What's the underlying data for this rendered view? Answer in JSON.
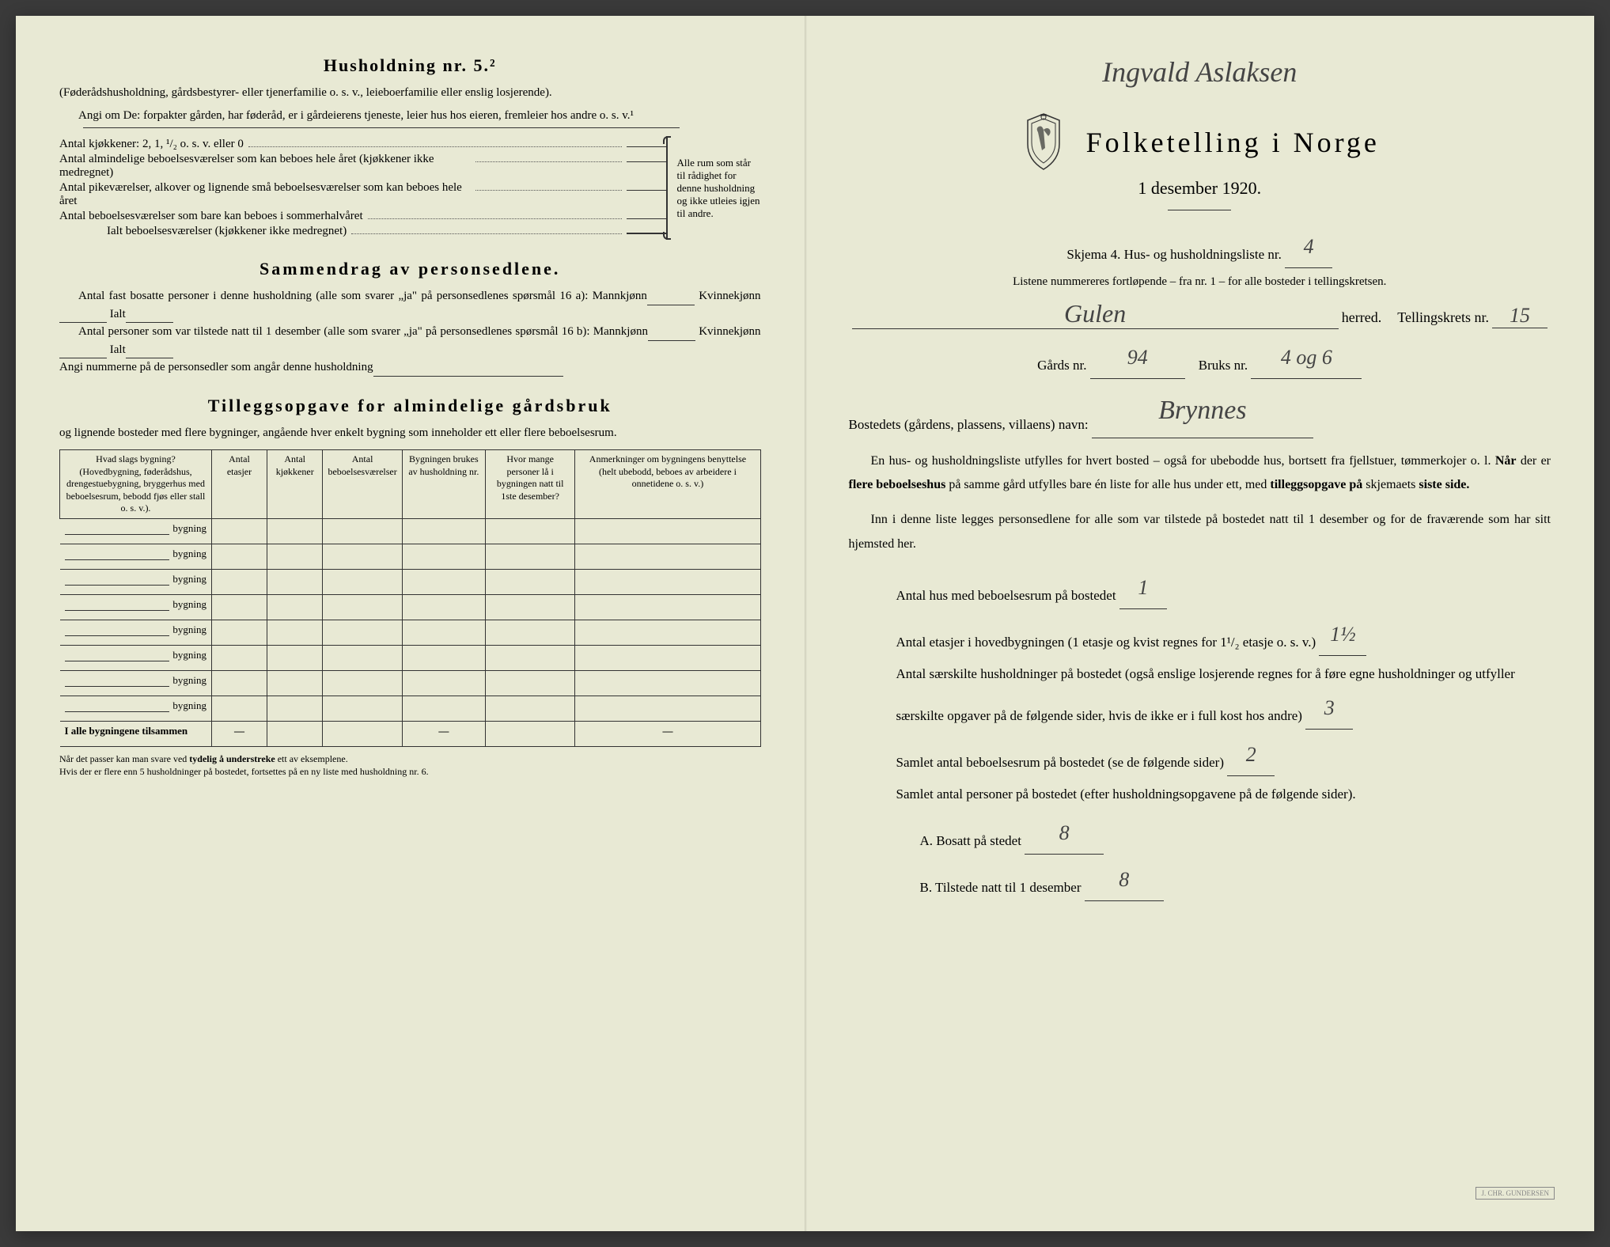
{
  "left": {
    "heading": "Husholdning nr. 5.²",
    "intro1": "(Føderådshusholdning, gårdsbestyrer- eller tjenerfamilie o. s. v., leieboerfamilie eller enslig losjerende).",
    "intro2": "Angi om De: forpakter gården, har føderåd, er i gårdeierens tjeneste, leier hus hos eieren, fremleier hos andre o. s. v.¹",
    "kitchens_label": "Antal kjøkkener: 2, 1, ¹/₂ o. s. v. eller 0",
    "rooms": [
      "Antal almindelige beboelsesværelser som kan beboes hele året (kjøkkener ikke medregnet)",
      "Antal pikeværelser, alkover og lignende små beboelsesværelser som kan beboes hele året",
      "Antal beboelsesværelser som bare kan beboes i sommerhalvåret"
    ],
    "rooms_total": "Ialt beboelsesværelser (kjøkkener ikke medregnet)",
    "brace_text": "Alle rum som står til rådighet for denne husholdning og ikke utleies igjen til andre.",
    "sammendrag_heading": "Sammendrag av personsedlene.",
    "sammendrag_1a": "Antal fast bosatte personer i denne husholdning (alle som svarer „ja\" på personsedlenes spørsmål 16 a): Mannkjønn",
    "sammendrag_1b": "Kvinnekjønn",
    "sammendrag_1c": "Ialt",
    "sammendrag_2": "Antal personer som var tilstede natt til 1 desember (alle som svarer „ja\" på personsedlenes spørsmål 16 b): Mannkjønn",
    "sammendrag_3": "Angi nummerne på de personsedler som angår denne husholdning",
    "tillegg_heading": "Tilleggsopgave for almindelige gårdsbruk",
    "tillegg_intro": "og lignende bosteder med flere bygninger, angående hver enkelt bygning som inneholder ett eller flere beboelsesrum.",
    "table_headers": [
      "Hvad slags bygning?\n(Hovedbygning, føderådshus, drengestuebygning, bryggerhus med beboelsesrum, bebodd fjøs eller stall o. s. v.).",
      "Antal etasjer",
      "Antal kjøkkener",
      "Antal beboelsesværelser",
      "Bygningen brukes av husholdning nr.",
      "Hvor mange personer lå i bygningen natt til 1ste desember?",
      "Anmerkninger om bygningens benyttelse (helt ubebodd, beboes av arbeidere i onnetidene o. s. v.)"
    ],
    "row_label": "bygning",
    "sum_row": "I alle bygningene tilsammen",
    "footnote": "Når det passer kan man svare ved tydelig å understreke ett av eksemplene.\nHvis der er flere enn 5 husholdninger på bostedet, fortsettes på en ny liste med husholdning nr. 6."
  },
  "right": {
    "signature": "Ingvald Aslaksen",
    "title": "Folketelling i Norge",
    "subtitle": "1 desember 1920.",
    "skjema_label": "Skjema 4.  Hus- og husholdningsliste nr.",
    "skjema_nr": "4",
    "listene": "Listene nummereres fortløpende – fra nr. 1 – for alle bosteder i tellingskretsen.",
    "herred_val": "Gulen",
    "herred_label": "herred.",
    "tellingskrets_label": "Tellingskrets nr.",
    "tellingskrets_val": "15",
    "gards_label": "Gårds nr.",
    "gards_val": "94",
    "bruks_label": "Bruks nr.",
    "bruks_val": "4 og 6",
    "bosted_label": "Bostedets (gårdens, plassens, villaens) navn:",
    "bosted_val": "Brynnes",
    "para1": "En hus- og husholdningsliste utfylles for hvert bosted – også for ubebodde hus, bortsett fra fjellstuer, tømmerkojer o. l.  Når der er flere beboelseshus på samme gård utfylles bare én liste for alle hus under ett, med tilleggsopgave på skjemaets siste side.",
    "para2": "Inn i denne liste legges personsedlene for alle som var tilstede på bostedet natt til 1 desember og for de fraværende som har sitt hjemsted her.",
    "q1_label": "Antal hus med beboelsesrum på bostedet",
    "q1_val": "1",
    "q2_label_a": "Antal etasjer i hovedbygningen (1 etasje og kvist regnes for 1¹/₂ etasje o. s. v.)",
    "q2_val": "1½",
    "q3_label": "Antal særskilte husholdninger på bostedet (også enslige losjerende regnes for å føre egne husholdninger og utfyller særskilte opgaver på de følgende sider, hvis de ikke er i full kost hos andre)",
    "q3_val": "3",
    "q4_label": "Samlet antal beboelsesrum på bostedet (se de følgende sider)",
    "q4_val": "2",
    "q5_label": "Samlet antal personer på bostedet (efter husholdningsopgavene på de følgende sider).",
    "q5a_label": "A.  Bosatt på stedet",
    "q5a_val": "8",
    "q5b_label": "B.  Tilstede natt til 1 desember",
    "q5b_val": "8"
  }
}
